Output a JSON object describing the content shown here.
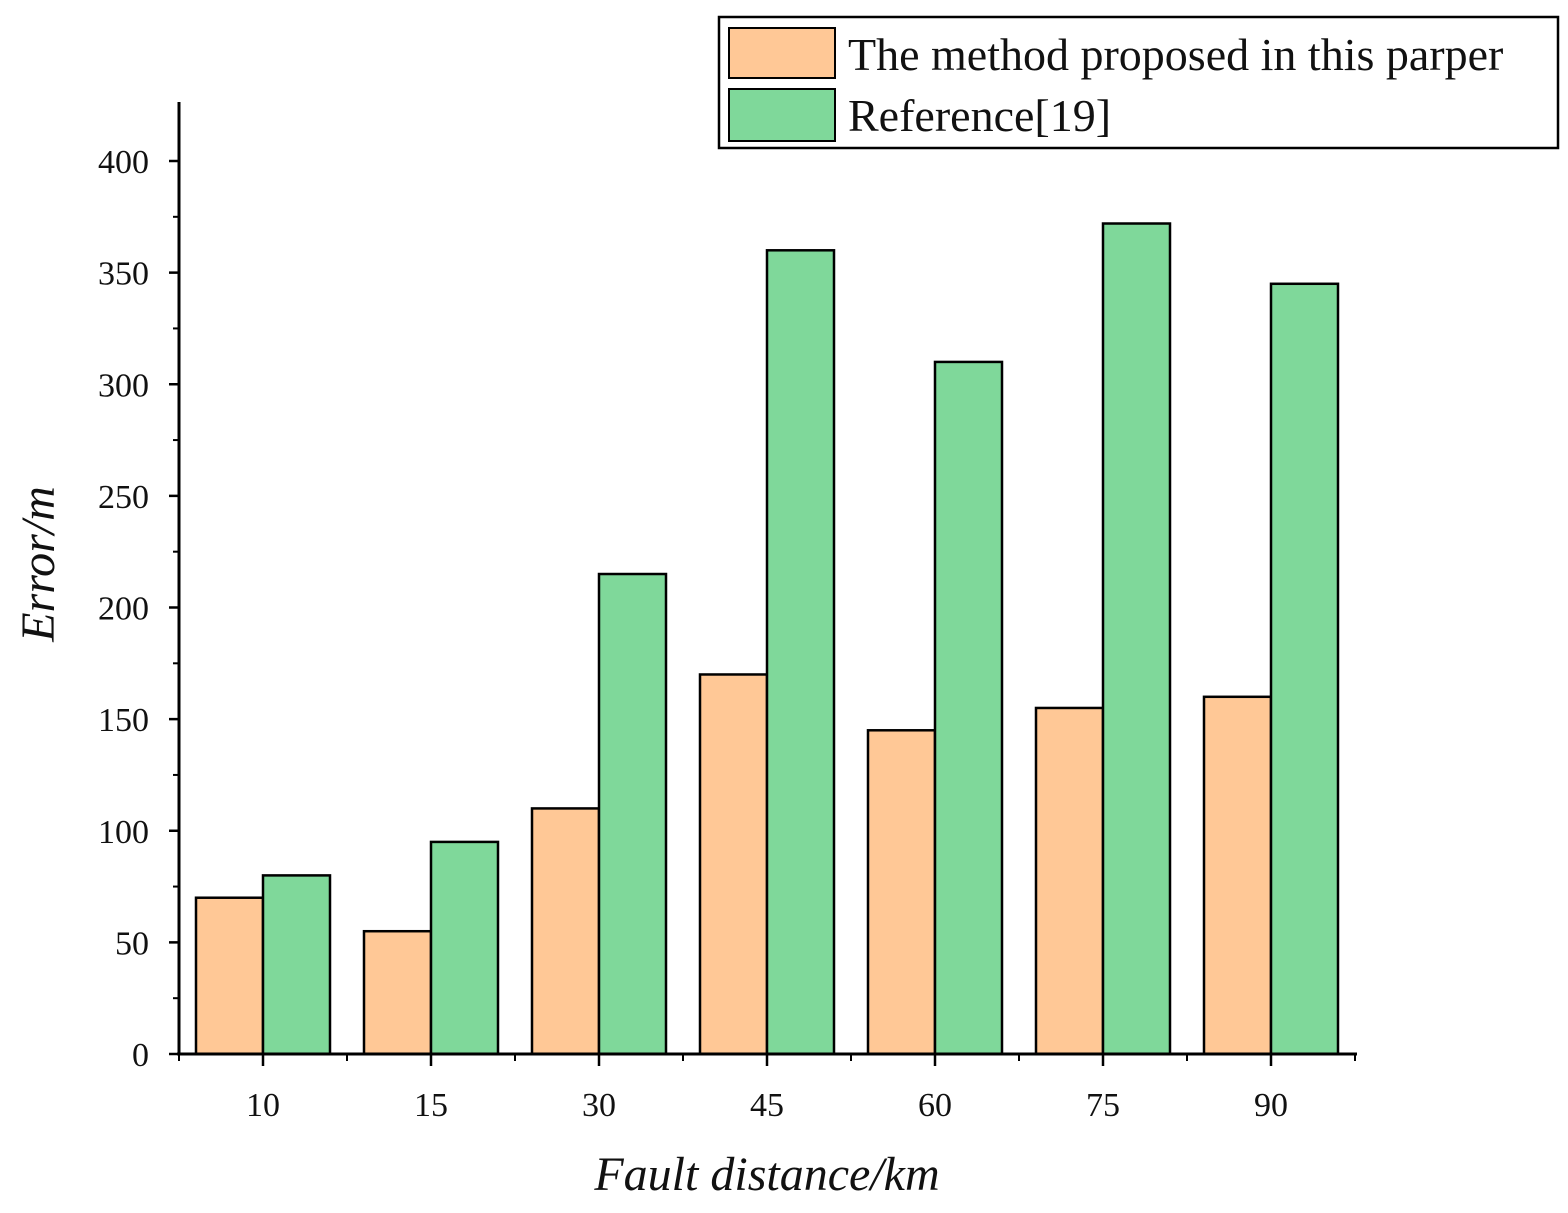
{
  "chart_data": {
    "type": "bar",
    "title": "",
    "xlabel": "Fault distance/km",
    "ylabel": "Error/m",
    "categories": [
      "10",
      "15",
      "30",
      "45",
      "60",
      "75",
      "90"
    ],
    "ylim": [
      0,
      420
    ],
    "yticks": [
      0,
      50,
      100,
      150,
      200,
      250,
      300,
      350,
      400
    ],
    "grid": false,
    "legend_position": "top-right",
    "series": [
      {
        "name": "The method proposed in this parper",
        "color": "#ffc896",
        "values": [
          70,
          55,
          110,
          170,
          145,
          155,
          160
        ]
      },
      {
        "name": "Reference[19]",
        "color": "#7fd89a",
        "values": [
          80,
          95,
          215,
          360,
          310,
          372,
          345
        ]
      }
    ]
  }
}
